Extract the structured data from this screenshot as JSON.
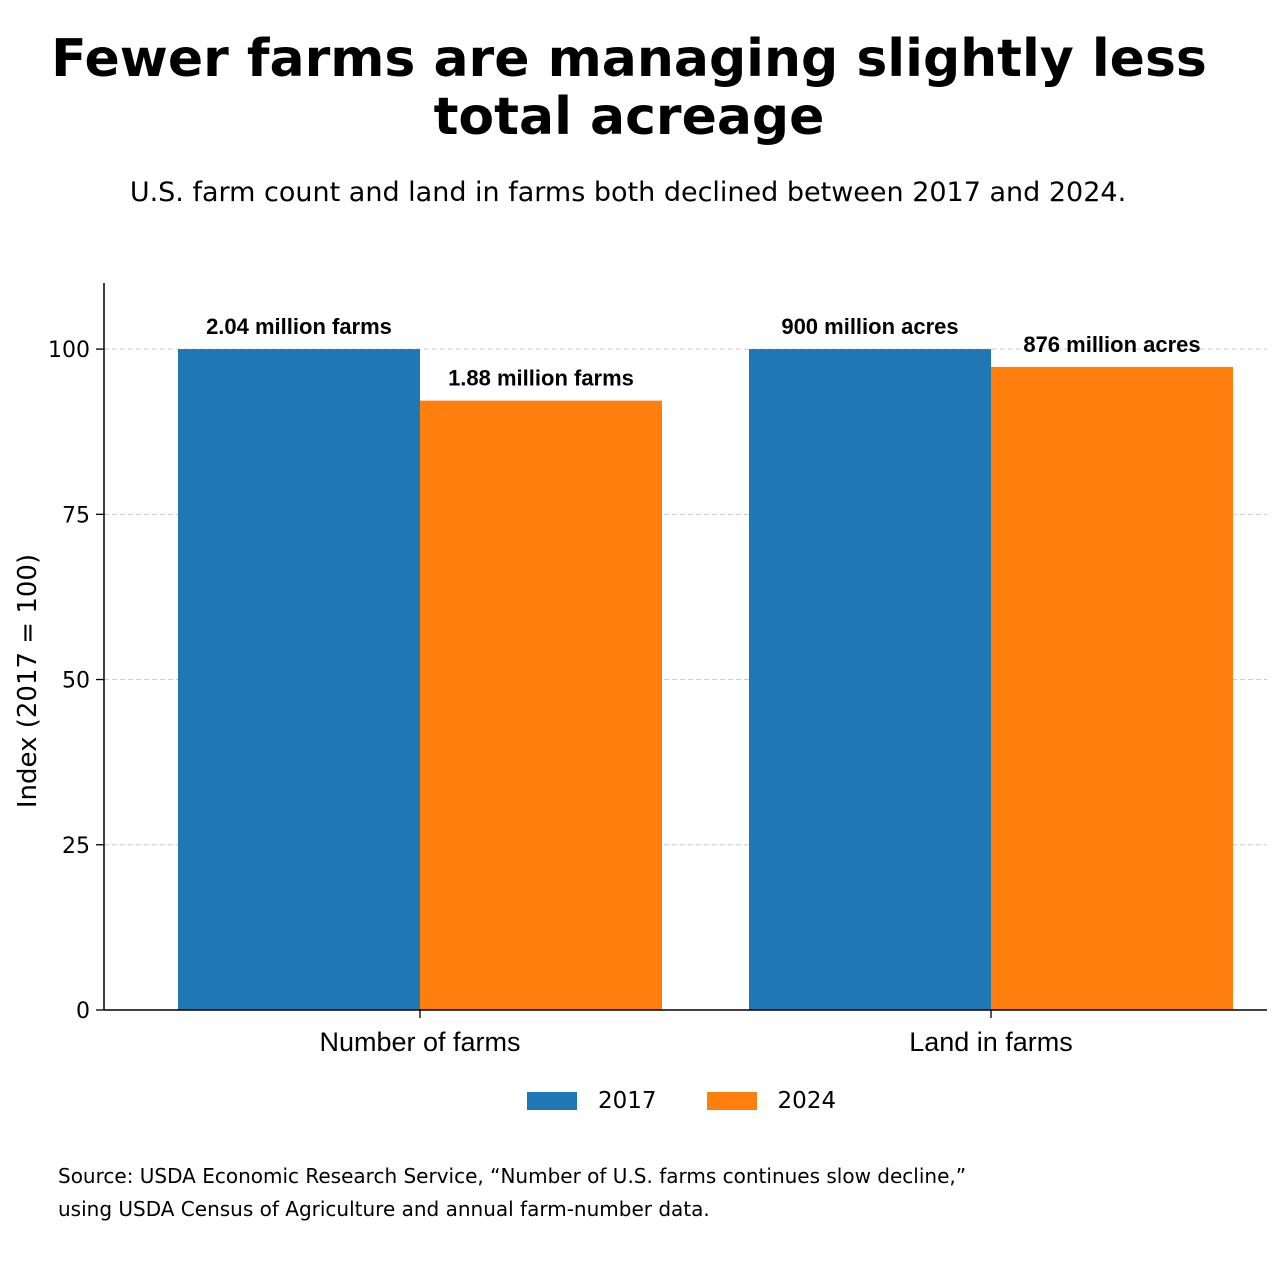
{
  "title": "Fewer farms are managing slightly less total acreage",
  "subtitle": "U.S. farm count and land in farms both declined between 2017 and 2024.",
  "chart_data": {
    "type": "bar",
    "categories": [
      "Number of farms",
      "Land in farms"
    ],
    "series": [
      {
        "name": "2017",
        "color": "#1f77b4",
        "values": [
          100,
          100
        ],
        "labels": [
          "2.04 million farms",
          "900 million acres"
        ]
      },
      {
        "name": "2024",
        "color": "#ff7f0e",
        "values": [
          92.2,
          97.3
        ],
        "labels": [
          "1.88 million farms",
          "876 million acres"
        ]
      }
    ],
    "xlabel": "",
    "ylabel": "Index (2017 = 100)",
    "ylim": [
      0,
      110
    ],
    "yticks": [
      0,
      25,
      50,
      75,
      100
    ],
    "grid": true,
    "legend_position": "bottom-center"
  },
  "source_lines": [
    " Source: USDA Economic Research Service, “Number of U.S. farms continues slow decline,”",
    "using USDA Census of Agriculture and annual farm-number data."
  ]
}
